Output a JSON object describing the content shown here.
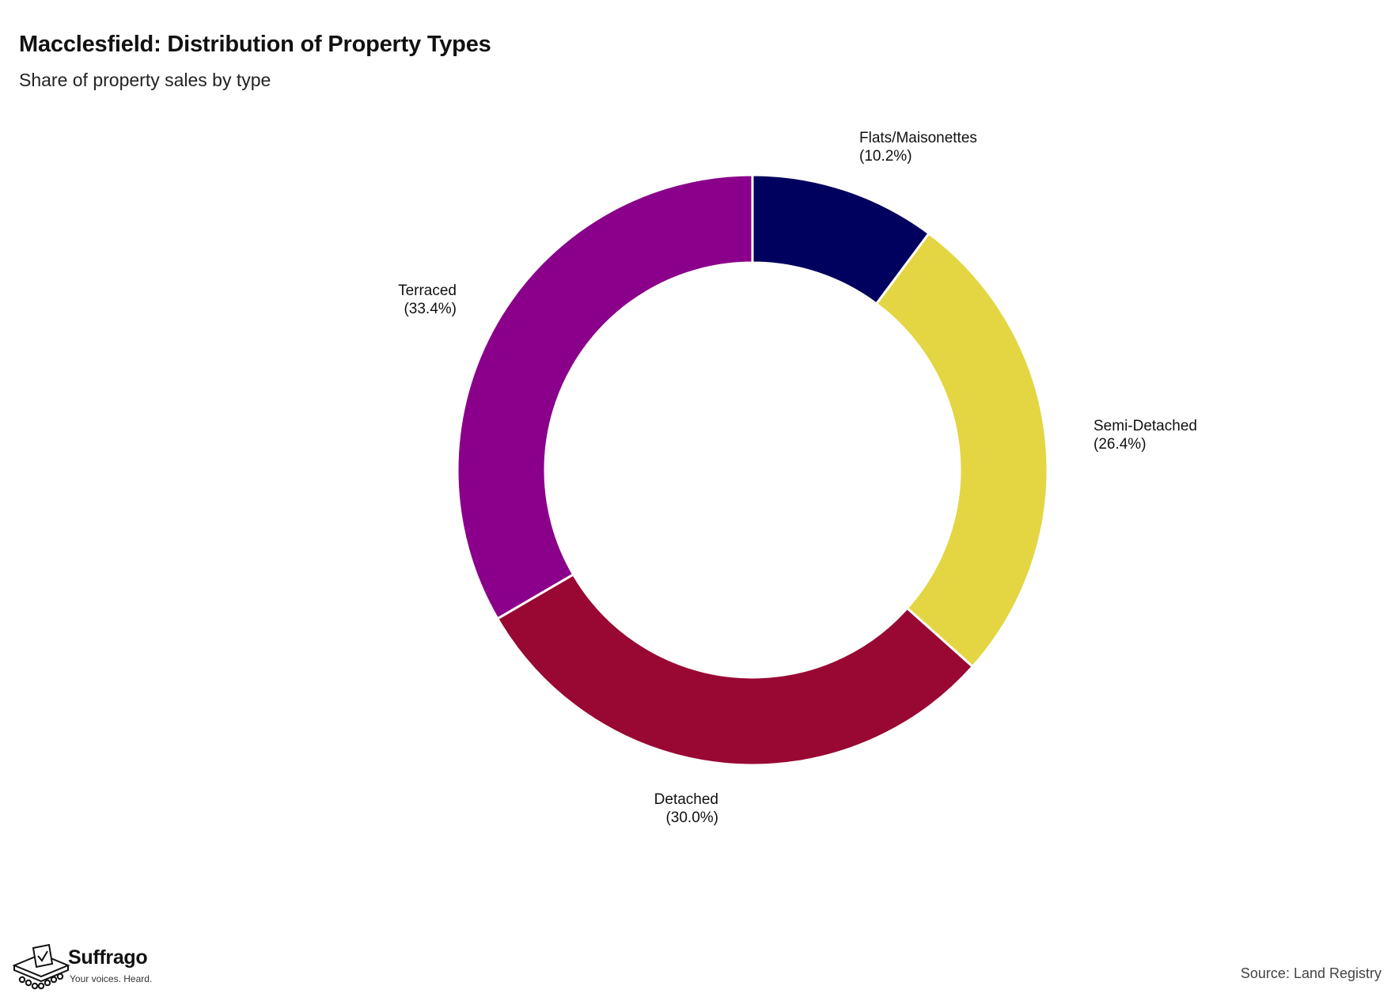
{
  "header": {
    "title": "Macclesfield: Distribution of Property Types",
    "subtitle": "Share of property sales by type"
  },
  "chart_data": {
    "type": "pie",
    "variant": "donut",
    "title": "Macclesfield: Distribution of Property Types",
    "subtitle": "Share of property sales by type",
    "unit": "%",
    "slices": [
      {
        "label": "Flats/Maisonettes",
        "value": 10.2,
        "value_text": "(10.2%)",
        "color": "#00005f"
      },
      {
        "label": "Semi-Detached",
        "value": 26.4,
        "value_text": "(26.4%)",
        "color": "#e3d642"
      },
      {
        "label": "Detached",
        "value": 30.0,
        "value_text": "(30.0%)",
        "color": "#990833"
      },
      {
        "label": "Terraced",
        "value": 33.4,
        "value_text": "(33.4%)",
        "color": "#8a008a"
      }
    ],
    "start_angle": "12 o'clock",
    "direction": "clockwise",
    "slice_separator_color": "#ffffff"
  },
  "footer": {
    "brand_name": "Suffrago",
    "brand_tagline": "Your voices. Heard.",
    "brand_icon": "ballot-box-icon",
    "source": "Source: Land Registry"
  }
}
